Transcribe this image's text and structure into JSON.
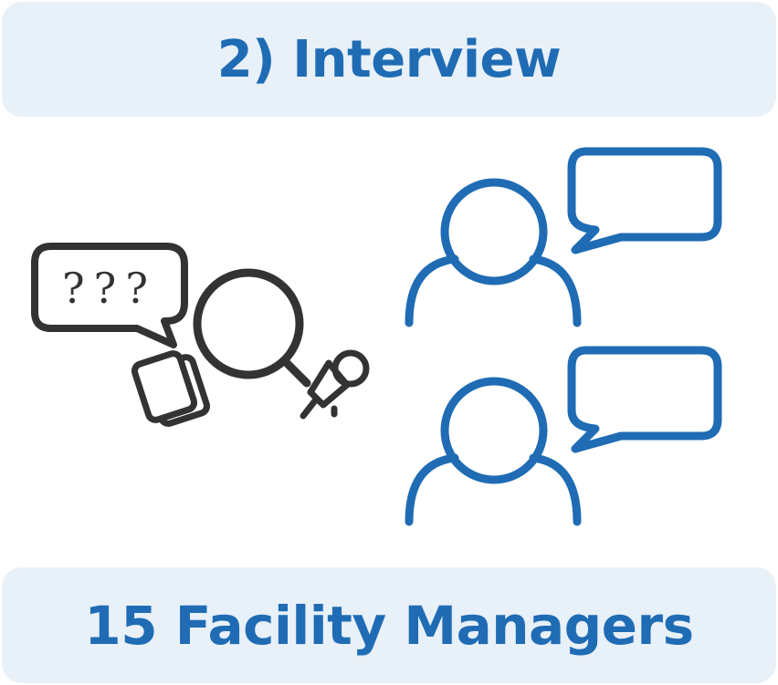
{
  "header": {
    "title": "2) Interview"
  },
  "footer": {
    "subtitle": "15 Facility Managers"
  },
  "illustration": {
    "interviewer": {
      "speech_bubble_text": "???",
      "icons": [
        "speech-bubble-icon",
        "magnifying-glass-icon",
        "notes-cards-icon",
        "microphone-icon"
      ]
    },
    "participants": {
      "icons": [
        "person-icon",
        "speech-bubble-icon"
      ],
      "count_shown": 2
    }
  },
  "colors": {
    "banner_background": "#e8f0f8",
    "accent_blue": "#1f6cb4",
    "icon_dark": "#333333"
  }
}
